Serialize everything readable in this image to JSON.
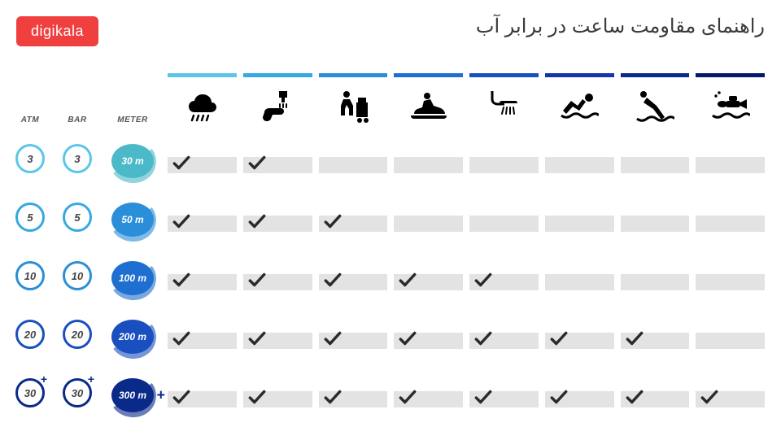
{
  "logo": "digikala",
  "logo_bg": "#ef3f3e",
  "title": "راهنمای مقاومت ساعت در برابر آب",
  "headers": {
    "atm": "ATM",
    "bar": "BAR",
    "meter": "METER"
  },
  "icon_bar_colors": [
    "#5bc6e8",
    "#37a9e1",
    "#2a8ed8",
    "#1f6fd0",
    "#1a4fc0",
    "#1336a8",
    "#0a2a8a",
    "#05186a"
  ],
  "icons": [
    "rain",
    "hand-wash",
    "work",
    "jet-ski",
    "shower",
    "swimming",
    "diving",
    "scuba"
  ],
  "rows": [
    {
      "atm": "3",
      "bar": "3",
      "meter": "30 m",
      "circle_color": "#5bc6e8",
      "badge_bg": "#4bb9c7",
      "checks": [
        true,
        true,
        false,
        false,
        false,
        false,
        false,
        false
      ],
      "plus": false
    },
    {
      "atm": "5",
      "bar": "5",
      "meter": "50 m",
      "circle_color": "#37a9e1",
      "badge_bg": "#2a8ed8",
      "checks": [
        true,
        true,
        true,
        false,
        false,
        false,
        false,
        false
      ],
      "plus": false
    },
    {
      "atm": "10",
      "bar": "10",
      "meter": "100 m",
      "circle_color": "#2a8ed8",
      "badge_bg": "#1f6fd0",
      "checks": [
        true,
        true,
        true,
        true,
        true,
        false,
        false,
        false
      ],
      "plus": false
    },
    {
      "atm": "20",
      "bar": "20",
      "meter": "200 m",
      "circle_color": "#1a4fc0",
      "badge_bg": "#1a4fc0",
      "checks": [
        true,
        true,
        true,
        true,
        true,
        true,
        true,
        false
      ],
      "plus": false
    },
    {
      "atm": "30",
      "bar": "30",
      "meter": "300 m",
      "circle_color": "#0a2a8a",
      "badge_bg": "#0a2a8a",
      "checks": [
        true,
        true,
        true,
        true,
        true,
        true,
        true,
        true
      ],
      "plus": true
    }
  ],
  "cell_bg": "#e3e3e3",
  "background": "#ffffff",
  "title_color": "#3a3a3a",
  "title_fontsize": 24
}
